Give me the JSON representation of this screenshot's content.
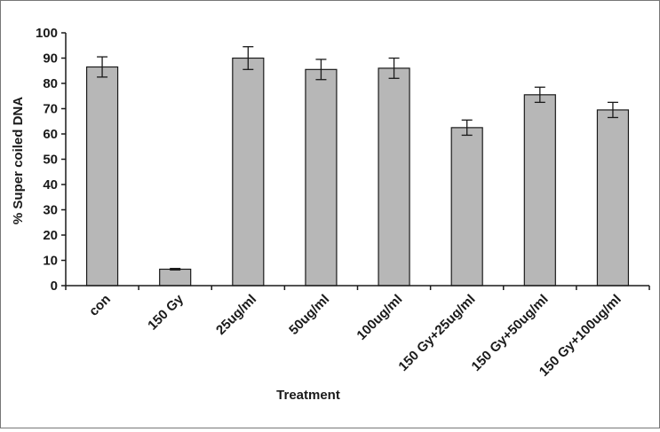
{
  "chart_data": {
    "type": "bar",
    "title": "",
    "xlabel": "Treatment",
    "ylabel": "% Super coiled DNA",
    "ylim": [
      0,
      100
    ],
    "yticks": [
      "0",
      "10",
      "20",
      "30",
      "40",
      "50",
      "60",
      "70",
      "80",
      "90",
      "100"
    ],
    "grid": false,
    "legend": "none",
    "categories": [
      "con",
      "150 Gy",
      "25ug/ml",
      "50ug/ml",
      "100ug/ml",
      "150 Gy+25ug/ml",
      "150 Gy+50ug/ml",
      "150 Gy+100ug/ml"
    ],
    "values": [
      86.5,
      6.5,
      90,
      85.5,
      86,
      62.5,
      75.5,
      69.5
    ],
    "errors": [
      4,
      0.3,
      4.5,
      4,
      4,
      3,
      3,
      3
    ],
    "bar_color": "#b7b7b7",
    "edge_color": "#1a1a1a"
  }
}
